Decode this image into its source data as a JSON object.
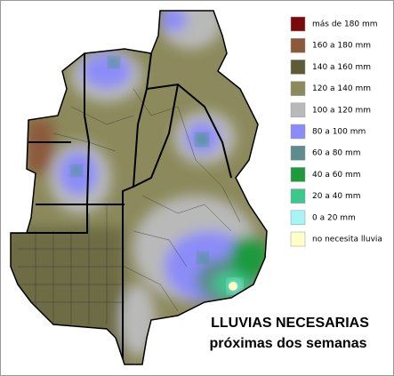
{
  "title": {
    "line1": "LLUVIAS NECESARIAS",
    "line2": "próximas dos semanas"
  },
  "legend": [
    {
      "label": "más de 180 mm",
      "color": "#7a0a0a"
    },
    {
      "label": "160 a 180 mm",
      "color": "#8c5a3a"
    },
    {
      "label": "140 a 160 mm",
      "color": "#5e5c34"
    },
    {
      "label": "120 a 140 mm",
      "color": "#8c8a5c"
    },
    {
      "label": "100 a 120 mm",
      "color": "#b9b9b9"
    },
    {
      "label": "80 a 100 mm",
      "color": "#8c8cf8"
    },
    {
      "label": "60 a 80 mm",
      "color": "#5c8c8c"
    },
    {
      "label": "40 a 60 mm",
      "color": "#1e9a3c"
    },
    {
      "label": "20 a 40 mm",
      "color": "#3cc88c"
    },
    {
      "label": "0 a 20 mm",
      "color": "#a6f4f4"
    },
    {
      "label": "no necesita lluvia",
      "color": "#ffffc8"
    }
  ]
}
